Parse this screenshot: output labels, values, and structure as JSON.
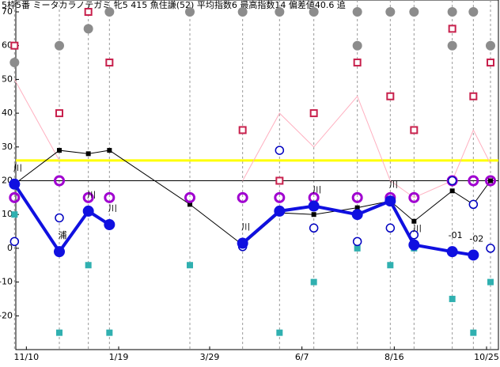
{
  "chart_data": {
    "type": "line",
    "title": "5枠5番 ミータカラノテガミ 牝5 415 魚住謙(52) 平均指数6 最高指数14 偏差値40.6 追",
    "x": [
      -9,
      25,
      47,
      63,
      124,
      164,
      192,
      218,
      251,
      276,
      294,
      323,
      339,
      352
    ],
    "xlim": [
      -8,
      358
    ],
    "xticks": [
      {
        "value": 0,
        "label": "11/10"
      },
      {
        "value": 70,
        "label": "1/19"
      },
      {
        "value": 139,
        "label": "3/29"
      },
      {
        "value": 209,
        "label": "6/7"
      },
      {
        "value": 279,
        "label": "8/16"
      },
      {
        "value": 349,
        "label": "10/25"
      }
    ],
    "ylim": [
      -30,
      70
    ],
    "yticks": [
      -20,
      -10,
      0,
      10,
      20,
      30,
      40,
      50,
      60,
      70
    ],
    "hlines": [
      {
        "value": 26,
        "color": "#ffff00"
      },
      {
        "value": 20,
        "color": "#000000"
      }
    ],
    "series": [
      {
        "marker": "line",
        "color": "#ffb0c0",
        "values": [
          50,
          26,
          null,
          null,
          null,
          20,
          40,
          30,
          45,
          20,
          15,
          20,
          35,
          25
        ]
      },
      {
        "marker": "line-square",
        "color": "#000000",
        "values": [
          19,
          29,
          28,
          29,
          13,
          1,
          10.5,
          10,
          12,
          14,
          8,
          17,
          13,
          20
        ]
      },
      {
        "marker": "dot",
        "color": "#8c8c8c",
        "values": [
          55,
          60,
          65,
          70,
          70,
          70,
          70,
          70,
          70,
          70,
          70,
          70,
          70,
          60
        ]
      },
      {
        "marker": "dot",
        "color": "#8c8c8c",
        "values": [
          null,
          null,
          null,
          null,
          null,
          null,
          null,
          null,
          60,
          null,
          null,
          60,
          null,
          null
        ]
      },
      {
        "marker": "open-square",
        "color": "#c8204c",
        "values": [
          60,
          40,
          70,
          55,
          null,
          35,
          20,
          40,
          55,
          45,
          35,
          65,
          45,
          55
        ]
      },
      {
        "marker": "square",
        "color": "#30b0b0",
        "values": [
          10,
          -25,
          -5,
          -25,
          -5,
          null,
          -25,
          -10,
          0,
          -5,
          0,
          -15,
          -25,
          -10
        ]
      },
      {
        "marker": "open-circle",
        "color": "#a000d0",
        "values": [
          15,
          20,
          15,
          15,
          15,
          15,
          15,
          15,
          15,
          15,
          15,
          20,
          20,
          20
        ]
      },
      {
        "marker": "small-circle",
        "color": "#0000c0",
        "values": [
          2,
          9,
          null,
          null,
          null,
          0.5,
          29,
          6,
          2,
          6,
          4,
          20,
          13,
          0
        ]
      },
      {
        "marker": "thick-line",
        "color": "#1010e0",
        "values": [
          19,
          -1,
          11,
          7,
          null,
          1.5,
          11,
          12.5,
          10,
          14,
          1,
          -1,
          -2,
          null
        ]
      }
    ],
    "point_labels": [
      "川",
      "浦",
      "川",
      "川",
      null,
      "川",
      null,
      "川",
      null,
      "川",
      "川",
      "-01",
      "-02",
      null
    ]
  }
}
